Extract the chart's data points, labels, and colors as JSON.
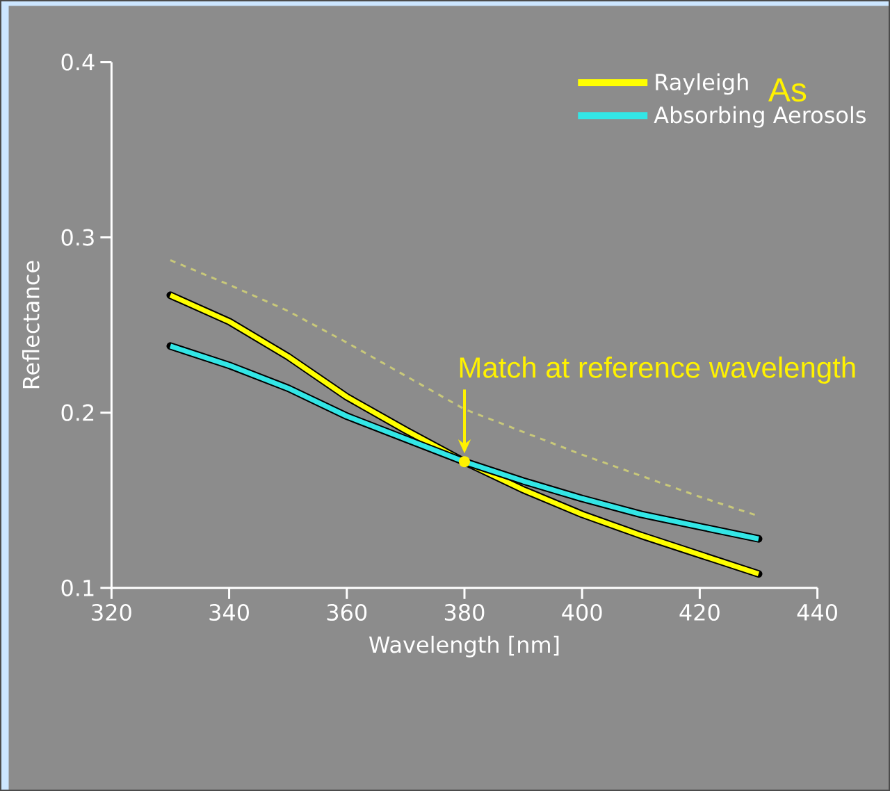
{
  "chart_data": {
    "type": "line",
    "xlabel": "Wavelength [nm]",
    "ylabel": "Reflectance",
    "x": [
      330,
      340,
      350,
      360,
      370,
      380,
      390,
      400,
      410,
      420,
      430
    ],
    "series": [
      {
        "name": "Rayleigh",
        "color": "#ffff00",
        "values": [
          0.267,
          0.252,
          0.232,
          0.209,
          0.19,
          0.172,
          0.156,
          0.142,
          0.13,
          0.119,
          0.108
        ]
      },
      {
        "name": "Absorbing Aerosols",
        "color": "#33e6e6",
        "values": [
          0.238,
          0.227,
          0.214,
          0.198,
          0.185,
          0.172,
          0.161,
          0.151,
          0.142,
          0.135,
          0.128
        ]
      },
      {
        "color": "#c8c87a",
        "line_style": "dotted",
        "values": [
          0.287,
          0.273,
          0.258,
          0.24,
          0.221,
          0.202,
          0.189,
          0.176,
          0.164,
          0.152,
          0.141
        ]
      }
    ],
    "xlim": [
      320,
      440
    ],
    "xticks": [
      320,
      340,
      360,
      380,
      400,
      420,
      440
    ],
    "ylim": [
      0.1,
      0.4
    ],
    "yticks": [
      0.1,
      0.2,
      0.3,
      0.4
    ],
    "grid": false,
    "marker": "none",
    "legend": "top right",
    "annotations": [
      "As",
      {
        "text": "Match at reference wavelength",
        "x": 380,
        "y": 0.172
      }
    ]
  }
}
